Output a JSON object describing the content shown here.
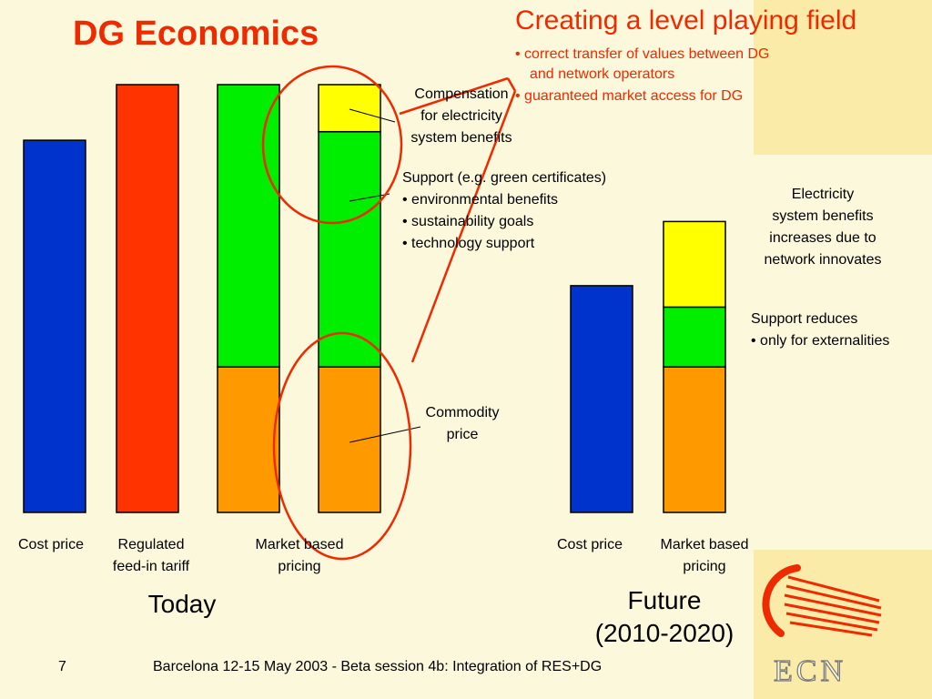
{
  "slide": {
    "title": "DG Economics",
    "headline": "Creating a level playing field",
    "bullets": [
      "• correct transfer of values between DG",
      "and network operators",
      "• guaranteed market access for DG"
    ],
    "page_number": "7",
    "footer": "Barcelona 12-15 May 2003 - Beta session 4b: Integration of RES+DG",
    "logo_text": "ECN"
  },
  "annotations": {
    "compensation": [
      "Compensation",
      "for electricity",
      "system benefits"
    ],
    "support": [
      "Support (e.g. green certificates)",
      "• environmental benefits",
      "• sustainability goals",
      "• technology support"
    ],
    "commodity": [
      "Commodity",
      "price"
    ],
    "future_benefits": [
      "Electricity",
      "system benefits",
      "increases due to",
      "network innovates"
    ],
    "support_reduces": [
      "Support reduces",
      "• only for externalities"
    ]
  },
  "chart_data": {
    "type": "bar",
    "stacked": true,
    "groups": [
      {
        "label": "Today",
        "categories": [
          "Cost price",
          "Regulated feed-in tariff",
          "Market based pricing",
          "Market based pricing"
        ]
      },
      {
        "label": "Future (2010-2020)",
        "categories": [
          "Cost price",
          "Market based pricing"
        ]
      }
    ],
    "category_labels": [
      [
        "Cost price"
      ],
      [
        "Regulated",
        "feed-in tariff"
      ],
      [
        "Market based",
        "pricing"
      ],
      [
        "Cost price"
      ],
      [
        "Market based",
        "pricing"
      ]
    ],
    "ylim": [
      0,
      100
    ],
    "bars": [
      {
        "group": "Today",
        "category": "Cost price",
        "segments": [
          {
            "component": "Cost price",
            "value": 87,
            "color": "#0033cc"
          }
        ]
      },
      {
        "group": "Today",
        "category": "Regulated feed-in tariff",
        "segments": [
          {
            "component": "Regulated feed-in tariff",
            "value": 100,
            "color": "#ff3300"
          }
        ]
      },
      {
        "group": "Today",
        "category": "Market based pricing",
        "segments": [
          {
            "component": "Commodity price",
            "value": 34,
            "color": "#ff9900"
          },
          {
            "component": "Support",
            "value": 66,
            "color": "#00ee00"
          }
        ]
      },
      {
        "group": "Today",
        "category": "Market based pricing",
        "segments": [
          {
            "component": "Commodity price",
            "value": 34,
            "color": "#ff9900"
          },
          {
            "component": "Support",
            "value": 55,
            "color": "#00ee00"
          },
          {
            "component": "Compensation for electricity system benefits",
            "value": 11,
            "color": "#ffff00"
          }
        ]
      },
      {
        "group": "Future (2010-2020)",
        "category": "Cost price",
        "segments": [
          {
            "component": "Cost price",
            "value": 53,
            "color": "#0033cc"
          }
        ]
      },
      {
        "group": "Future (2010-2020)",
        "category": "Market based pricing",
        "segments": [
          {
            "component": "Commodity price",
            "value": 34,
            "color": "#ff9900"
          },
          {
            "component": "Support",
            "value": 14,
            "color": "#00ee00"
          },
          {
            "component": "Compensation for electricity system benefits",
            "value": 20,
            "color": "#ffff00"
          }
        ]
      }
    ],
    "colors": {
      "accent": "#ee2a00",
      "outline": "#000000"
    }
  }
}
